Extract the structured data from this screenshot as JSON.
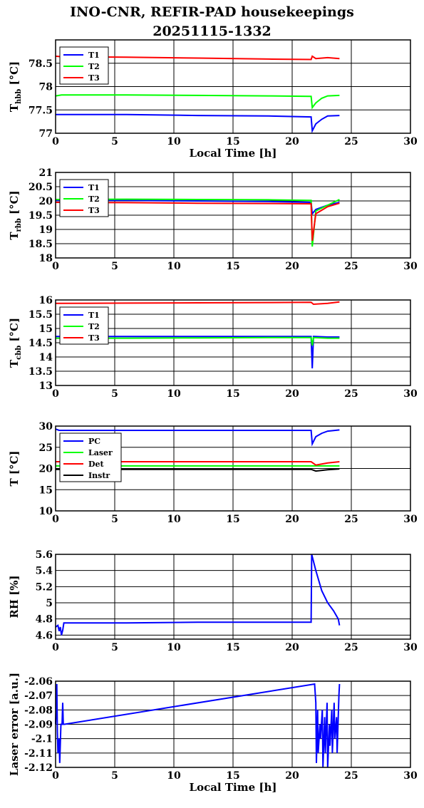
{
  "title_line1": "INO-CNR, REFIR-PAD housekeepings",
  "title_line2": "20251115-1332",
  "colors": {
    "blue": "#0000ff",
    "green": "#00ff00",
    "red": "#ff0000",
    "black": "#000000"
  },
  "chart_data": [
    {
      "type": "line",
      "ylabel_main": "T",
      "ylabel_sub": "hbb",
      "ylabel_tail": " [°C]",
      "xlabel": "Local Time [h]",
      "xlim": [
        0,
        30
      ],
      "ylim": [
        77,
        79
      ],
      "xticks": [
        0,
        5,
        10,
        15,
        20,
        25,
        30
      ],
      "yticks": [
        77,
        77.5,
        78,
        78.5
      ],
      "ytick_labels": [
        "77",
        "77.5",
        "78",
        "78.5"
      ],
      "grid": true,
      "legend": "top-left",
      "series": [
        {
          "name": "T1",
          "color": "#0000ff",
          "x": [
            0,
            0.5,
            6,
            12,
            18,
            21.6,
            21.7,
            22,
            22.5,
            23,
            24
          ],
          "y": [
            77.4,
            77.4,
            77.4,
            77.38,
            77.37,
            77.35,
            77.05,
            77.2,
            77.3,
            77.37,
            77.38
          ]
        },
        {
          "name": "T2",
          "color": "#00ff00",
          "x": [
            0,
            0.5,
            6,
            12,
            18,
            21.6,
            21.7,
            22,
            22.5,
            23,
            24
          ],
          "y": [
            77.8,
            77.82,
            77.82,
            77.81,
            77.8,
            77.79,
            77.55,
            77.65,
            77.75,
            77.8,
            77.81
          ]
        },
        {
          "name": "T3",
          "color": "#ff0000",
          "x": [
            0,
            0.5,
            6,
            12,
            18,
            21.6,
            21.7,
            22,
            23,
            24
          ],
          "y": [
            78.65,
            78.64,
            78.63,
            78.61,
            78.59,
            78.58,
            78.65,
            78.6,
            78.62,
            78.6
          ]
        }
      ]
    },
    {
      "type": "line",
      "ylabel_main": "T",
      "ylabel_sub": "rbb",
      "ylabel_tail": " [°C]",
      "xlabel": "",
      "xlim": [
        0,
        30
      ],
      "ylim": [
        18,
        21
      ],
      "xticks": [
        0,
        5,
        10,
        15,
        20,
        25,
        30
      ],
      "yticks": [
        18,
        18.5,
        19,
        19.5,
        20,
        20.5,
        21
      ],
      "ytick_labels": [
        "18",
        "18.5",
        "19",
        "19.5",
        "20",
        "20.5",
        "21"
      ],
      "grid": true,
      "legend": "top-left",
      "series": [
        {
          "name": "T1",
          "color": "#0000ff",
          "x": [
            0,
            6,
            12,
            18,
            21.6,
            21.7,
            22,
            23,
            24
          ],
          "y": [
            20.02,
            20.02,
            20.0,
            19.98,
            19.95,
            19.55,
            19.7,
            19.85,
            19.95
          ]
        },
        {
          "name": "T2",
          "color": "#00ff00",
          "x": [
            0,
            6,
            12,
            18,
            21.6,
            21.7,
            22,
            23,
            24
          ],
          "y": [
            20.05,
            20.06,
            20.05,
            20.04,
            20.02,
            18.4,
            19.65,
            19.85,
            20.05
          ]
        },
        {
          "name": "T3",
          "color": "#ff0000",
          "x": [
            0,
            6,
            12,
            18,
            21.6,
            21.7,
            22,
            23,
            24
          ],
          "y": [
            19.95,
            19.94,
            19.92,
            19.91,
            19.9,
            18.6,
            19.55,
            19.8,
            19.92
          ]
        }
      ]
    },
    {
      "type": "line",
      "ylabel_main": "T",
      "ylabel_sub": "cbb",
      "ylabel_tail": " [°C]",
      "xlabel": "",
      "xlim": [
        0,
        30
      ],
      "ylim": [
        13,
        16
      ],
      "xticks": [
        0,
        5,
        10,
        15,
        20,
        25,
        30
      ],
      "yticks": [
        13,
        13.5,
        14,
        14.5,
        15,
        15.5,
        16
      ],
      "ytick_labels": [
        "13",
        "13.5",
        "14",
        "14.5",
        "15",
        "15.5",
        "16"
      ],
      "grid": true,
      "legend": "top-left",
      "series": [
        {
          "name": "T1",
          "color": "#0000ff",
          "x": [
            0,
            6,
            12,
            18,
            21.6,
            21.7,
            21.8,
            23,
            24
          ],
          "y": [
            14.72,
            14.72,
            14.72,
            14.72,
            14.72,
            13.6,
            14.72,
            14.7,
            14.7
          ]
        },
        {
          "name": "T2",
          "color": "#00ff00",
          "x": [
            0,
            6,
            12,
            18,
            21.6,
            21.7,
            21.8,
            23,
            24
          ],
          "y": [
            14.66,
            14.66,
            14.67,
            14.68,
            14.68,
            14.4,
            14.68,
            14.66,
            14.66
          ]
        },
        {
          "name": "T3",
          "color": "#ff0000",
          "x": [
            0,
            6,
            12,
            18,
            21.6,
            21.8,
            23,
            24
          ],
          "y": [
            15.88,
            15.89,
            15.9,
            15.91,
            15.92,
            15.85,
            15.88,
            15.93
          ]
        }
      ]
    },
    {
      "type": "line",
      "ylabel_main": "T [°C]",
      "ylabel_sub": "",
      "ylabel_tail": "",
      "xlabel": "",
      "xlim": [
        0,
        30
      ],
      "ylim": [
        10,
        30
      ],
      "xticks": [
        0,
        5,
        10,
        15,
        20,
        25,
        30
      ],
      "yticks": [
        10,
        15,
        20,
        25,
        30
      ],
      "ytick_labels": [
        "10",
        "15",
        "20",
        "25",
        "30"
      ],
      "grid": true,
      "legend": "top-left",
      "series": [
        {
          "name": "PC",
          "color": "#0000ff",
          "x": [
            0,
            0.3,
            6,
            12,
            18,
            21.6,
            21.7,
            22,
            22.5,
            23,
            24
          ],
          "y": [
            29.3,
            29.0,
            29.0,
            29.0,
            29.0,
            29.0,
            25.8,
            27.5,
            28.3,
            28.8,
            29.1
          ]
        },
        {
          "name": "Laser",
          "color": "#00ff00",
          "x": [
            0,
            6,
            12,
            18,
            21.6,
            22,
            24
          ],
          "y": [
            20.6,
            20.6,
            20.6,
            20.6,
            20.6,
            20.6,
            20.6
          ]
        },
        {
          "name": "Det",
          "color": "#ff0000",
          "x": [
            0,
            6,
            12,
            18,
            21.6,
            22,
            23,
            24
          ],
          "y": [
            21.6,
            21.6,
            21.6,
            21.6,
            21.6,
            20.8,
            21.3,
            21.6
          ]
        },
        {
          "name": "Instr",
          "color": "#000000",
          "x": [
            0,
            6,
            12,
            18,
            21.6,
            22,
            23,
            24
          ],
          "y": [
            19.8,
            19.8,
            19.8,
            19.8,
            19.8,
            19.4,
            19.7,
            19.9
          ]
        }
      ]
    },
    {
      "type": "line",
      "ylabel_main": "RH [%]",
      "ylabel_sub": "",
      "ylabel_tail": "",
      "xlabel": "",
      "xlim": [
        0,
        30
      ],
      "ylim": [
        4.55,
        5.6
      ],
      "xticks": [
        0,
        5,
        10,
        15,
        20,
        25,
        30
      ],
      "yticks": [
        4.6,
        4.8,
        5.0,
        5.2,
        5.4,
        5.6
      ],
      "ytick_labels": [
        "4.6",
        "4.8",
        "5",
        "5.2",
        "5.4",
        "5.6"
      ],
      "grid": true,
      "legend": "none",
      "series": [
        {
          "name": "",
          "color": "#0000ff",
          "x": [
            0,
            0.2,
            0.3,
            0.4,
            0.5,
            0.6,
            0.7,
            6,
            12,
            18,
            21.6,
            21.65,
            22,
            22.5,
            23,
            23.5,
            23.9,
            24
          ],
          "y": [
            4.7,
            4.72,
            4.65,
            4.7,
            4.6,
            4.66,
            4.75,
            4.75,
            4.76,
            4.76,
            4.76,
            5.6,
            5.4,
            5.15,
            5.0,
            4.9,
            4.8,
            4.72
          ]
        }
      ]
    },
    {
      "type": "line",
      "ylabel_main": "Laser error [a.u.]",
      "ylabel_sub": "",
      "ylabel_tail": "",
      "xlabel": "Local Time [h]",
      "xlim": [
        0,
        30
      ],
      "ylim": [
        -2.12,
        -2.06
      ],
      "xticks": [
        0,
        5,
        10,
        15,
        20,
        25,
        30
      ],
      "yticks": [
        -2.12,
        -2.11,
        -2.1,
        -2.09,
        -2.08,
        -2.07,
        -2.06
      ],
      "ytick_labels": [
        "-2.12",
        "-2.11",
        "-2.1",
        "-2.09",
        "-2.08",
        "-2.07",
        "-2.06"
      ],
      "grid": true,
      "legend": "none",
      "series": [
        {
          "name": "",
          "color": "#0000ff",
          "x": [
            0,
            0.1,
            0.15,
            0.2,
            0.3,
            0.35,
            0.45,
            0.55,
            0.6,
            0.65,
            0.7,
            0.75,
            21.9,
            22.0,
            22.05,
            22.15,
            22.2,
            22.35,
            22.4,
            22.55,
            22.6,
            22.75,
            22.8,
            22.95,
            23.0,
            23.15,
            23.2,
            23.35,
            23.4,
            23.55,
            23.6,
            23.75,
            23.8,
            23.95,
            24.0
          ],
          "y": [
            -2.09,
            -2.062,
            -2.095,
            -2.11,
            -2.1,
            -2.117,
            -2.09,
            -2.09,
            -2.075,
            -2.09,
            -2.09,
            -2.09,
            -2.062,
            -2.075,
            -2.117,
            -2.08,
            -2.11,
            -2.09,
            -2.1,
            -2.08,
            -2.12,
            -2.085,
            -2.11,
            -2.075,
            -2.12,
            -2.09,
            -2.105,
            -2.08,
            -2.11,
            -2.075,
            -2.1,
            -2.085,
            -2.11,
            -2.07,
            -2.062
          ]
        }
      ]
    }
  ]
}
